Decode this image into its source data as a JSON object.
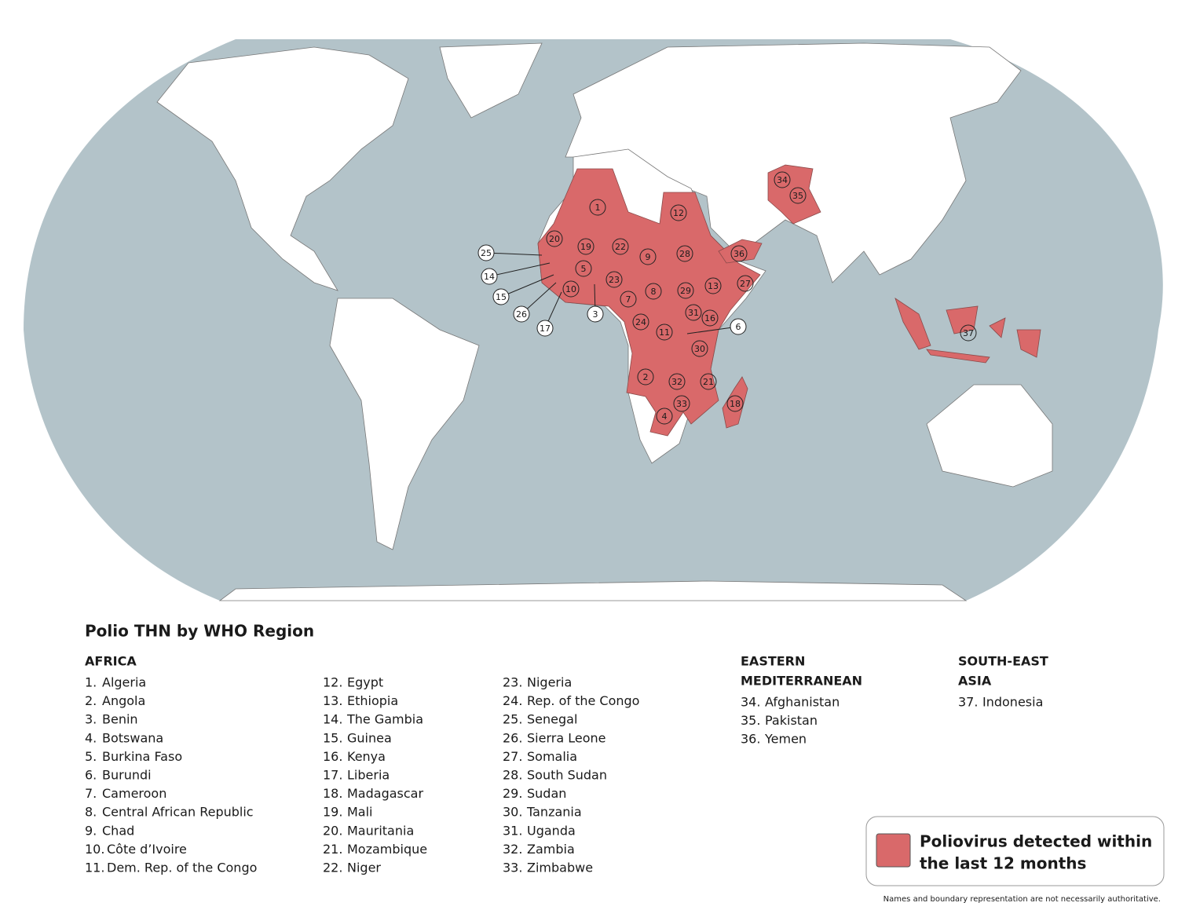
{
  "title": "Polio THN by WHO Region",
  "regions": [
    {
      "title": [
        "AFRICA"
      ],
      "countries": [
        {
          "number": "1.",
          "name": "Algeria"
        },
        {
          "number": "2.",
          "name": "Angola"
        },
        {
          "number": "3.",
          "name": "Benin"
        },
        {
          "number": "4.",
          "name": "Botswana"
        },
        {
          "number": "5.",
          "name": "Burkina Faso"
        },
        {
          "number": "6.",
          "name": "Burundi"
        },
        {
          "number": "7.",
          "name": "Cameroon"
        },
        {
          "number": "8.",
          "name": "Central African Republic"
        },
        {
          "number": "9.",
          "name": "Chad"
        },
        {
          "number": "10.",
          "name": "Côte d’Ivoire"
        },
        {
          "number": "11.",
          "name": "Dem. Rep. of the Congo"
        },
        {
          "number": "12.",
          "name": "Egypt"
        },
        {
          "number": "13.",
          "name": "Ethiopia"
        },
        {
          "number": "14.",
          "name": "The Gambia"
        },
        {
          "number": "15.",
          "name": "Guinea"
        },
        {
          "number": "16.",
          "name": "Kenya"
        },
        {
          "number": "17.",
          "name": "Liberia"
        },
        {
          "number": "18.",
          "name": "Madagascar"
        },
        {
          "number": "19.",
          "name": "Mali"
        },
        {
          "number": "20.",
          "name": "Mauritania"
        },
        {
          "number": "21.",
          "name": "Mozambique"
        },
        {
          "number": "22.",
          "name": "Niger"
        },
        {
          "number": "23.",
          "name": "Nigeria"
        },
        {
          "number": "24.",
          "name": "Rep. of the Congo"
        },
        {
          "number": "25.",
          "name": "Senegal"
        },
        {
          "number": "26.",
          "name": "Sierra Leone"
        },
        {
          "number": "27.",
          "name": "Somalia"
        },
        {
          "number": "28.",
          "name": "South Sudan"
        },
        {
          "number": "29.",
          "name": "Sudan"
        },
        {
          "number": "30.",
          "name": "Tanzania"
        },
        {
          "number": "31.",
          "name": "Uganda"
        },
        {
          "number": "32.",
          "name": "Zambia"
        },
        {
          "number": "33.",
          "name": "Zimbabwe"
        }
      ]
    },
    {
      "title": [
        "EASTERN",
        "MEDITERRANEAN"
      ],
      "countries": [
        {
          "number": "34.",
          "name": "Afghanistan"
        },
        {
          "number": "35.",
          "name": "Pakistan"
        },
        {
          "number": "36.",
          "name": "Yemen"
        }
      ]
    },
    {
      "title": [
        "SOUTH-EAST",
        "ASIA"
      ],
      "countries": [
        {
          "number": "37.",
          "name": "Indonesia"
        }
      ]
    }
  ],
  "map_markers": [
    "1",
    "2",
    "3",
    "4",
    "5",
    "6",
    "7",
    "8",
    "9",
    "10",
    "11",
    "12",
    "13",
    "14",
    "15",
    "16",
    "17",
    "18",
    "19",
    "20",
    "21",
    "22",
    "23",
    "24",
    "25",
    "26",
    "27",
    "28",
    "29",
    "30",
    "31",
    "32",
    "33",
    "34",
    "35",
    "36",
    "37"
  ],
  "legend": {
    "label": [
      "Poliovirus detected within",
      "the last 12 months"
    ],
    "color": "#d9696a"
  },
  "footnote": "Names and boundary representation are not necessarily authoritative."
}
